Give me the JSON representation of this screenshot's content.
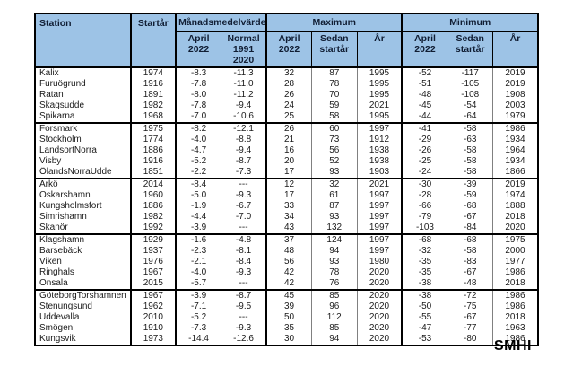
{
  "colors": {
    "header_bg": "#9dc3e6",
    "outer_border": "#000000",
    "grid_line": "#808080"
  },
  "table": {
    "header": {
      "station": "Station",
      "start_year": "Startår",
      "monthly_mean": "Månadsmedelvärde",
      "maximum": "Maximum",
      "minimum": "Minimum",
      "sub": {
        "mm_april": "April\n2022",
        "mm_normal": "Normal\n1991 2020",
        "max_april": "April\n2022",
        "max_since": "Sedan\nstartår",
        "max_year": "År",
        "min_april": "April\n2022",
        "min_since": "Sedan\nstartår",
        "min_year": "År"
      }
    },
    "column_keys": [
      "station",
      "start_year",
      "mm_april",
      "mm_normal",
      "max_april",
      "max_since",
      "max_year",
      "min_april",
      "min_since",
      "min_year"
    ],
    "group_size": 5,
    "rows": [
      [
        "Kalix",
        "1974",
        "-8.3",
        "-11.3",
        "32",
        "87",
        "1995",
        "-52",
        "-117",
        "2019"
      ],
      [
        "Furuögrund",
        "1916",
        "-7.8",
        "-11.0",
        "28",
        "78",
        "1995",
        "-51",
        "-105",
        "2019"
      ],
      [
        "Ratan",
        "1891",
        "-8.0",
        "-11.2",
        "26",
        "70",
        "1995",
        "-48",
        "-108",
        "1908"
      ],
      [
        "Skagsudde",
        "1982",
        "-7.8",
        "-9.4",
        "24",
        "59",
        "2021",
        "-45",
        "-54",
        "2003"
      ],
      [
        "Spikarna",
        "1968",
        "-7.0",
        "-10.6",
        "25",
        "58",
        "1995",
        "-44",
        "-64",
        "1979"
      ],
      [
        "Forsmark",
        "1975",
        "-8.2",
        "-12.1",
        "26",
        "60",
        "1997",
        "-41",
        "-58",
        "1986"
      ],
      [
        "Stockholm",
        "1774",
        "-4.0",
        "-8.8",
        "21",
        "73",
        "1912",
        "-29",
        "-63",
        "1934"
      ],
      [
        "LandsortNorra",
        "1886",
        "-4.7",
        "-9.4",
        "16",
        "56",
        "1938",
        "-26",
        "-58",
        "1964"
      ],
      [
        "Visby",
        "1916",
        "-5.2",
        "-8.7",
        "20",
        "52",
        "1938",
        "-25",
        "-58",
        "1934"
      ],
      [
        "ÖlandsNorraUdde",
        "1851",
        "-2.2",
        "-7.3",
        "17",
        "93",
        "1903",
        "-24",
        "-58",
        "1866"
      ],
      [
        "Arkö",
        "2014",
        "-8.4",
        "---",
        "12",
        "32",
        "2021",
        "-30",
        "-39",
        "2019"
      ],
      [
        "Oskarshamn",
        "1960",
        "-5.0",
        "-9.3",
        "17",
        "61",
        "1997",
        "-28",
        "-59",
        "1974"
      ],
      [
        "Kungsholmsfort",
        "1886",
        "-1.9",
        "-6.7",
        "33",
        "87",
        "1997",
        "-66",
        "-68",
        "1888"
      ],
      [
        "Simrishamn",
        "1982",
        "-4.4",
        "-7.0",
        "34",
        "93",
        "1997",
        "-79",
        "-67",
        "2018"
      ],
      [
        "Skanör",
        "1992",
        "-3.9",
        "---",
        "43",
        "132",
        "1997",
        "-103",
        "-84",
        "2020"
      ],
      [
        "Klagshamn",
        "1929",
        "-1.6",
        "-4.8",
        "37",
        "124",
        "1997",
        "-68",
        "-68",
        "1975"
      ],
      [
        "Barsebäck",
        "1937",
        "-2.3",
        "-8.1",
        "48",
        "94",
        "1997",
        "-32",
        "-58",
        "2000"
      ],
      [
        "Viken",
        "1976",
        "-2.1",
        "-8.4",
        "56",
        "93",
        "1980",
        "-35",
        "-83",
        "1977"
      ],
      [
        "Ringhals",
        "1967",
        "-4.0",
        "-9.3",
        "42",
        "78",
        "2020",
        "-35",
        "-67",
        "1986"
      ],
      [
        "Onsala",
        "2015",
        "-5.7",
        "---",
        "42",
        "76",
        "2020",
        "-38",
        "-48",
        "2018"
      ],
      [
        "GöteborgTorshamnen",
        "1967",
        "-3.9",
        "-8.7",
        "45",
        "85",
        "2020",
        "-38",
        "-72",
        "1986"
      ],
      [
        "Stenungsund",
        "1962",
        "-7.1",
        "-9.5",
        "39",
        "96",
        "2020",
        "-50",
        "-75",
        "1986"
      ],
      [
        "Uddevalla",
        "2010",
        "-5.2",
        "---",
        "50",
        "112",
        "2020",
        "-55",
        "-67",
        "2018"
      ],
      [
        "Smögen",
        "1910",
        "-7.3",
        "-9.3",
        "35",
        "85",
        "2020",
        "-47",
        "-77",
        "1963"
      ],
      [
        "Kungsvik",
        "1973",
        "-14.4",
        "-12.6",
        "30",
        "94",
        "2020",
        "-53",
        "-80",
        "1986"
      ]
    ]
  },
  "footer": {
    "logo_text": "SMHI"
  }
}
